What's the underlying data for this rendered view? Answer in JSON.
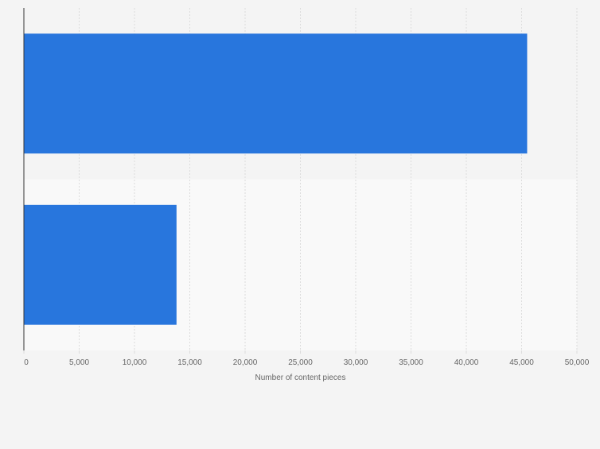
{
  "chart_data": {
    "type": "bar",
    "orientation": "horizontal",
    "categories": [
      "",
      ""
    ],
    "values": [
      45500,
      13800
    ],
    "title": "",
    "xlabel": "Number of content pieces",
    "ylabel": "",
    "xlim": [
      0,
      50000
    ],
    "x_ticks": [
      0,
      5000,
      10000,
      15000,
      20000,
      25000,
      30000,
      35000,
      40000,
      45000,
      50000
    ],
    "x_tick_labels": [
      "0",
      "5,000",
      "10,000",
      "15,000",
      "20,000",
      "25,000",
      "30,000",
      "35,000",
      "40,000",
      "45,000",
      "50,000"
    ],
    "grid": true,
    "legend": "none",
    "colors": {
      "bar": "#2876dd",
      "band_odd": "#f4f4f4",
      "band_even": "#f9f9f9",
      "grid": "#dcdcdc",
      "axis": "#333333",
      "text": "#666666"
    }
  }
}
